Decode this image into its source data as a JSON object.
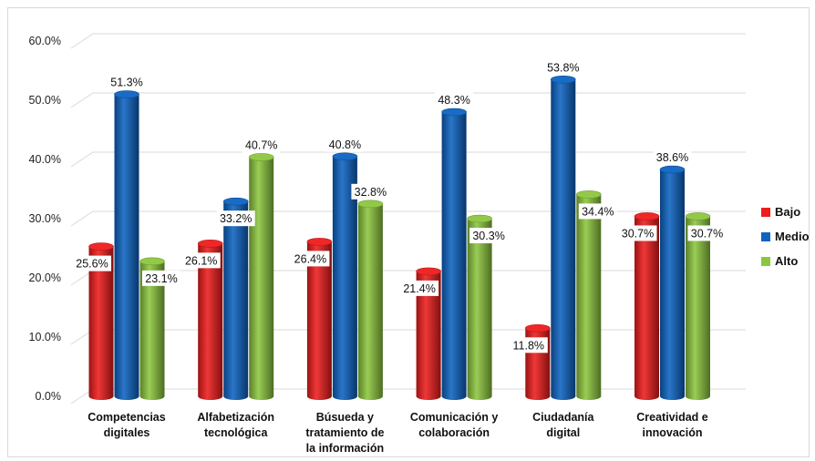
{
  "chart_data": {
    "type": "bar",
    "title": "",
    "xlabel": "",
    "ylabel": "",
    "ylim": [
      0,
      60
    ],
    "yticks": [
      "0.0%",
      "10.0%",
      "20.0%",
      "30.0%",
      "40.0%",
      "50.0%",
      "60.0%"
    ],
    "categories": [
      [
        "Competencias",
        "digitales"
      ],
      [
        "Alfabetización",
        "tecnológica"
      ],
      [
        "Búsueda y",
        "tratamiento de",
        "la información"
      ],
      [
        "Comunicación y",
        "colaboración"
      ],
      [
        "Ciudadanía",
        "digital"
      ],
      [
        "Creatividad e",
        "innovación"
      ]
    ],
    "series": [
      {
        "name": "Bajo",
        "color": "#ee1c1c",
        "values": [
          25.6,
          26.1,
          26.4,
          21.4,
          11.8,
          30.7
        ],
        "labels": [
          "25.6%",
          "26.1%",
          "26.4%",
          "21.4%",
          "11.8%",
          "30.7%"
        ]
      },
      {
        "name": "Medio",
        "color": "#0d63c2",
        "values": [
          51.3,
          33.2,
          40.8,
          48.3,
          53.8,
          38.6
        ],
        "labels": [
          "51.3%",
          "33.2%",
          "40.8%",
          "48.3%",
          "53.8%",
          "38.6%"
        ]
      },
      {
        "name": "Alto",
        "color": "#8cc63e",
        "values": [
          23.1,
          40.7,
          32.8,
          30.3,
          34.4,
          30.7
        ],
        "labels": [
          "23.1%",
          "40.7%",
          "32.8%",
          "30.3%",
          "34.4%",
          "30.7%"
        ]
      }
    ],
    "grid": true,
    "legend_position": "right"
  }
}
